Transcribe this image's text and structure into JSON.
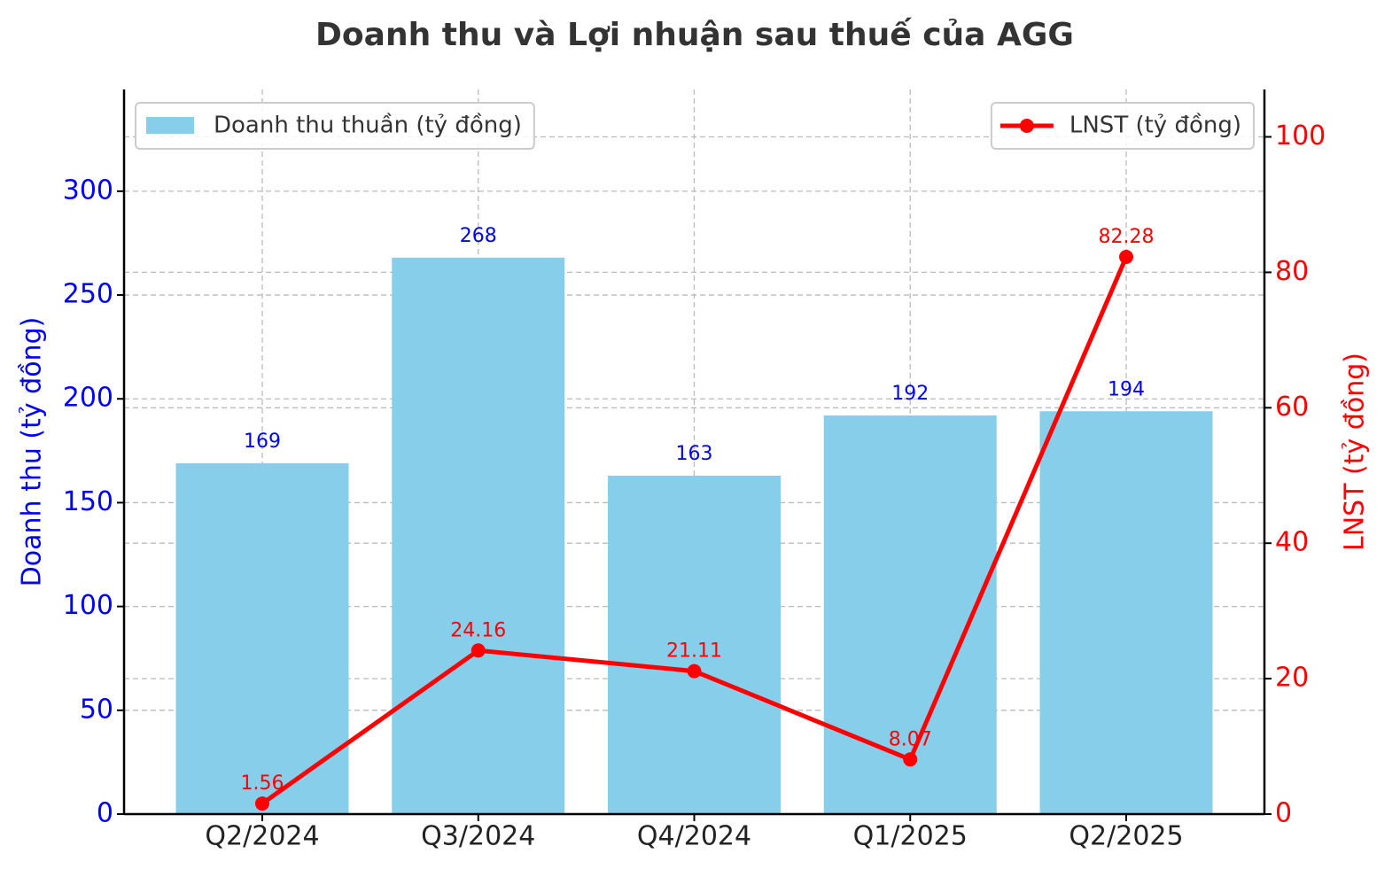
{
  "chart_data": {
    "type": "bar",
    "title": "Doanh thu và Lợi nhuận sau thuế của AGG",
    "categories": [
      "Q2/2024",
      "Q3/2024",
      "Q4/2024",
      "Q1/2025",
      "Q2/2025"
    ],
    "ylabel": "Doanh thu (tỷ đồng)",
    "y2label": "LNST (tỷ đồng)",
    "ylim": [
      0,
      349
    ],
    "yticks": [
      0,
      50,
      100,
      150,
      200,
      250,
      300
    ],
    "ycolor": "#0000ff",
    "y2lim": [
      0,
      107
    ],
    "y2ticks": [
      0,
      20,
      40,
      60,
      80,
      100
    ],
    "y2color": "#ff0000",
    "grid": true,
    "series": [
      {
        "name": "Doanh thu thuần (tỷ đồng)",
        "type": "bar",
        "color": "#87ceeb",
        "label_color": "#0000ff",
        "legend": "upper left",
        "values": [
          169,
          268,
          163,
          192,
          194
        ]
      },
      {
        "name": "LNST (tỷ đồng)",
        "type": "line",
        "axis": "y2",
        "color": "#ff0000",
        "label_color": "#ff0000",
        "legend": "upper right",
        "values": [
          1.56,
          24.16,
          21.11,
          8.07,
          82.28
        ]
      }
    ]
  }
}
